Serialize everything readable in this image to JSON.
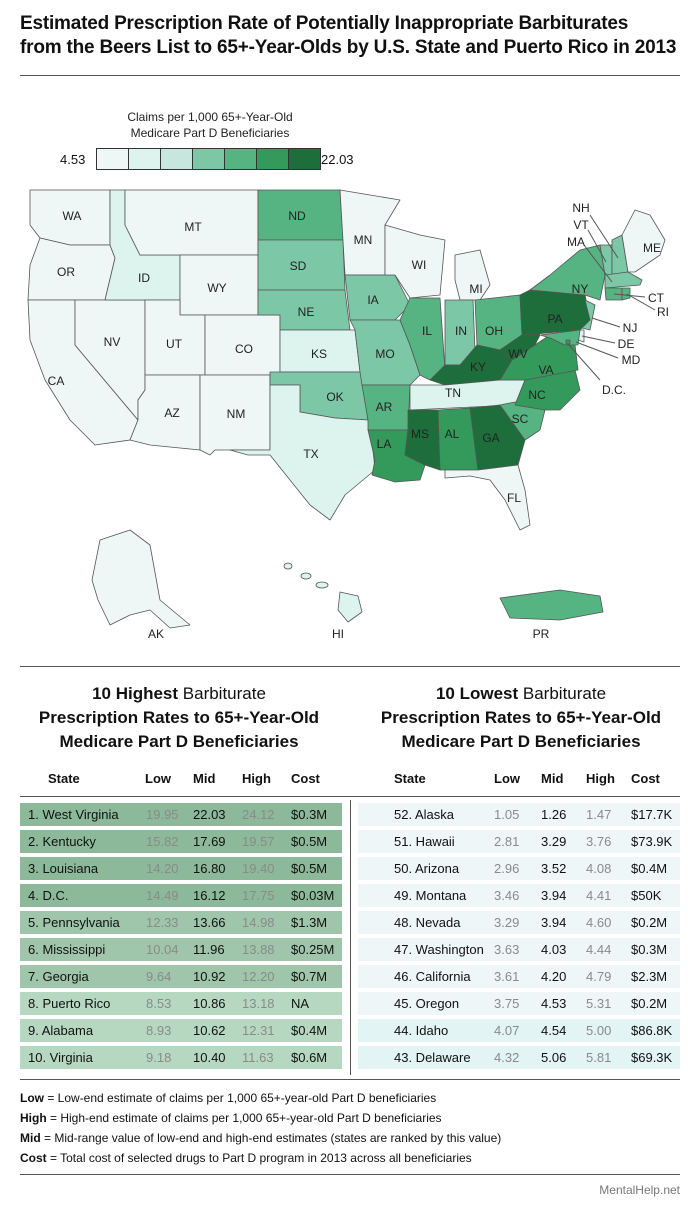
{
  "title_line1": "Estimated Prescription Rate of Potentially Inappropriate Barbiturates",
  "title_line2": "from the Beers List to 65+-Year-Olds by U.S. State and Puerto Rico in 2013",
  "legend": {
    "title_line1": "Claims per 1,000 65+-Year-Old",
    "title_line2": "Medicare Part D Beneficiaries",
    "min": "4.53",
    "max": "22.03",
    "colors": [
      "#eef7f6",
      "#dcf3ee",
      "#c7e6dd",
      "#7cc7a6",
      "#55b481",
      "#349a5c",
      "#1d6e3a"
    ]
  },
  "map_labels": {
    "WA": "WA",
    "OR": "OR",
    "CA": "CA",
    "NV": "NV",
    "ID": "ID",
    "MT": "MT",
    "WY": "WY",
    "UT": "UT",
    "AZ": "AZ",
    "CO": "CO",
    "NM": "NM",
    "ND": "ND",
    "SD": "SD",
    "NE": "NE",
    "KS": "KS",
    "OK": "OK",
    "TX": "TX",
    "MN": "MN",
    "IA": "IA",
    "MO": "MO",
    "AR": "AR",
    "LA": "LA",
    "WI": "WI",
    "IL": "IL",
    "MS": "MS",
    "MI": "MI",
    "IN": "IN",
    "OH": "OH",
    "KY": "KY",
    "TN": "TN",
    "AL": "AL",
    "GA": "GA",
    "FL": "FL",
    "SC": "SC",
    "NC": "NC",
    "VA": "VA",
    "WV": "WV",
    "PA": "PA",
    "NY": "NY",
    "ME": "ME",
    "NH": "NH",
    "VT": "VT",
    "MA": "MA",
    "CT": "CT",
    "RI": "RI",
    "NJ": "NJ",
    "DE": "DE",
    "MD": "MD",
    "DC": "D.C.",
    "AK": "AK",
    "HI": "HI",
    "PR": "PR"
  },
  "highest": {
    "title_prefix": "10 Highest",
    "title_rest": " Barbiturate",
    "title_line2": "Prescription Rates to 65+-Year-Old",
    "title_line3": "Medicare Part D Beneficiaries",
    "headers": [
      "State",
      "Low",
      "Mid",
      "High",
      "Cost"
    ],
    "rows": [
      {
        "state": "1. West Virginia",
        "low": "19.95",
        "mid": "22.03",
        "high": "24.12",
        "cost": "$0.3M",
        "color": "#8db99b"
      },
      {
        "state": "2. Kentucky",
        "low": "15.82",
        "mid": "17.69",
        "high": "19.57",
        "cost": "$0.5M",
        "color": "#8db99b"
      },
      {
        "state": "3. Louisiana",
        "low": "14.20",
        "mid": "16.80",
        "high": "19.40",
        "cost": "$0.5M",
        "color": "#8db99b"
      },
      {
        "state": "4. D.C.",
        "low": "14.49",
        "mid": "16.12",
        "high": "17.75",
        "cost": "$0.03M",
        "color": "#8db99b"
      },
      {
        "state": "5. Pennsylvania",
        "low": "12.33",
        "mid": "13.66",
        "high": "14.98",
        "cost": "$1.3M",
        "color": "#9fc6ab"
      },
      {
        "state": "6. Mississippi",
        "low": "10.04",
        "mid": "11.96",
        "high": "13.88",
        "cost": "$0.25M",
        "color": "#9fc6ab"
      },
      {
        "state": "7. Georgia",
        "low": "9.64",
        "mid": "10.92",
        "high": "12.20",
        "cost": "$0.7M",
        "color": "#9fc6ab"
      },
      {
        "state": "8. Puerto Rico",
        "low": "8.53",
        "mid": "10.86",
        "high": "13.18",
        "cost": "NA",
        "color": "#b6d8c0"
      },
      {
        "state": "9. Alabama",
        "low": "8.93",
        "mid": "10.62",
        "high": "12.31",
        "cost": "$0.4M",
        "color": "#b6d8c0"
      },
      {
        "state": "10. Virginia",
        "low": "9.18",
        "mid": "10.40",
        "high": "11.63",
        "cost": "$0.6M",
        "color": "#b6d8c0"
      }
    ]
  },
  "lowest": {
    "title_prefix": "10 Lowest",
    "title_rest": " Barbiturate",
    "title_line2": "Prescription Rates to 65+-Year-Old",
    "title_line3": "Medicare Part D Beneficiaries",
    "headers": [
      "State",
      "Low",
      "Mid",
      "High",
      "Cost"
    ],
    "rows": [
      {
        "state": "52. Alaska",
        "low": "1.05",
        "mid": "1.26",
        "high": "1.47",
        "cost": "$17.7K",
        "color": "#eef6f8"
      },
      {
        "state": "51. Hawaii",
        "low": "2.81",
        "mid": "3.29",
        "high": "3.76",
        "cost": "$73.9K",
        "color": "#eef6f8"
      },
      {
        "state": "50. Arizona",
        "low": "2.96",
        "mid": "3.52",
        "high": "4.08",
        "cost": "$0.4M",
        "color": "#eef6f8"
      },
      {
        "state": "49. Montana",
        "low": "3.46",
        "mid": "3.94",
        "high": "4.41",
        "cost": "$50K",
        "color": "#eef6f8"
      },
      {
        "state": "48. Nevada",
        "low": "3.29",
        "mid": "3.94",
        "high": "4.60",
        "cost": "$0.2M",
        "color": "#eef6f8"
      },
      {
        "state": "47. Washington",
        "low": "3.63",
        "mid": "4.03",
        "high": "4.44",
        "cost": "$0.3M",
        "color": "#eef6f8"
      },
      {
        "state": "46. California",
        "low": "3.61",
        "mid": "4.20",
        "high": "4.79",
        "cost": "$2.3M",
        "color": "#eef6f8"
      },
      {
        "state": "45. Oregon",
        "low": "3.75",
        "mid": "4.53",
        "high": "5.31",
        "cost": "$0.2M",
        "color": "#eef6f8"
      },
      {
        "state": "44. Idaho",
        "low": "4.07",
        "mid": "4.54",
        "high": "5.00",
        "cost": "$86.8K",
        "color": "#e2f4f3"
      },
      {
        "state": "43. Delaware",
        "low": "4.32",
        "mid": "5.06",
        "high": "5.81",
        "cost": "$69.3K",
        "color": "#e2f4f3"
      }
    ]
  },
  "notes": [
    {
      "term": "Low",
      "text": " = Low-end estimate of claims per 1,000 65+-year-old Part D beneficiaries"
    },
    {
      "term": "High",
      "text": " = High-end estimate of claims per 1,000 65+-year-old Part D beneficiaries"
    },
    {
      "term": "Mid",
      "text": " = Mid-range value of low-end and high-end estimates (states are ranked by this value)"
    },
    {
      "term": "Cost",
      "text": " = Total cost of selected drugs to Part D program in 2013 across all beneficiaries"
    }
  ],
  "source": "MentalHelp.net"
}
